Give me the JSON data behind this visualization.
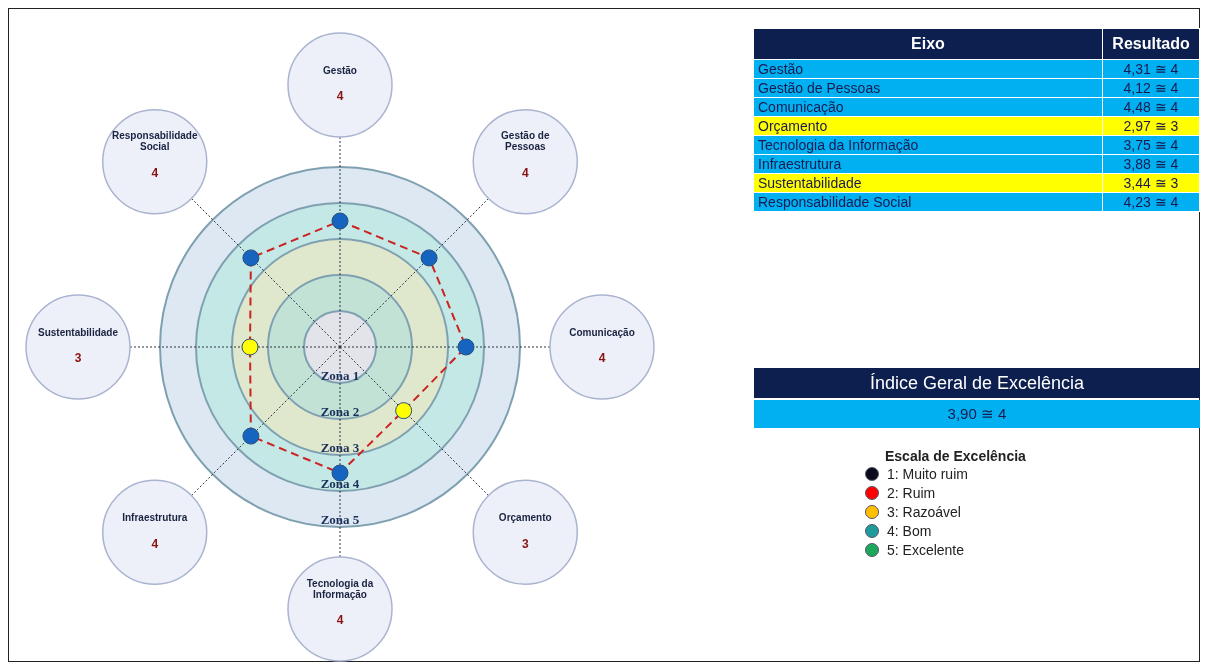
{
  "chart_data": [
    {
      "type": "radar",
      "categories": [
        "Gestão",
        "Gestão de Pessoas",
        "Comunicação",
        "Orçamento",
        "Tecnologia da Informação",
        "Infraestrutura",
        "Sustentabilidade",
        "Responsabilidade Social"
      ],
      "series": [
        {
          "color": "#cc2222",
          "values": [
            4,
            4,
            4,
            3,
            4,
            4,
            3,
            4
          ]
        }
      ],
      "colors": [
        "#1565c0",
        "#1565c0",
        "#1565c0",
        "#ffff00",
        "#1565c0",
        "#1565c0",
        "#ffff00",
        "#1565c0"
      ],
      "ylim": [
        0.5,
        5.5
      ],
      "marker": "circle",
      "line_style": "dashed",
      "legend": false,
      "yticks": [
        {
          "value": 1,
          "label": "Zona 1"
        },
        {
          "value": 2,
          "label": "Zona 2"
        },
        {
          "value": 3,
          "label": "Zona 3"
        },
        {
          "value": 4,
          "label": "Zona 4"
        },
        {
          "value": 5,
          "label": "Zona 5"
        }
      ],
      "annotations": [
        "4",
        "4",
        "4",
        "3",
        "4",
        "4",
        "3",
        "4"
      ]
    },
    {
      "type": "other",
      "annotations": [
        "Eixo",
        "Resultado"
      ],
      "categories": [
        "Gestão",
        "Gestão de Pessoas",
        "Comunicação",
        "Orçamento",
        "Tecnologia da Informação",
        "Infraestrutura",
        "Sustentabilidade",
        "Responsabilidade Social"
      ],
      "value_labels": [
        "4,31 ≅ 4",
        "4,12 ≅ 4",
        "4,48 ≅ 4",
        "2,97 ≅ 3",
        "3,75 ≅ 4",
        "3,88 ≅ 4",
        "3,44 ≅ 3",
        "4,23 ≅ 4"
      ],
      "colors": [
        "#00b0f0",
        "#00b0f0",
        "#00b0f0",
        "#ffff00",
        "#00b0f0",
        "#00b0f0",
        "#ffff00",
        "#00b0f0"
      ]
    },
    {
      "type": "other",
      "title": "Índice Geral de Excelência",
      "annotations": [
        "3,90 ≅ 4"
      ]
    },
    {
      "type": "other",
      "title": "Escala de Excelência",
      "categories": [
        "1: Muito ruim",
        "2: Ruim",
        "3: Razoável",
        "4: Bom",
        "5: Excelente"
      ],
      "colors": [
        "#0a0a1e",
        "#ff0000",
        "#ffc000",
        "#1f9a9a",
        "#1ca85a"
      ]
    }
  ]
}
